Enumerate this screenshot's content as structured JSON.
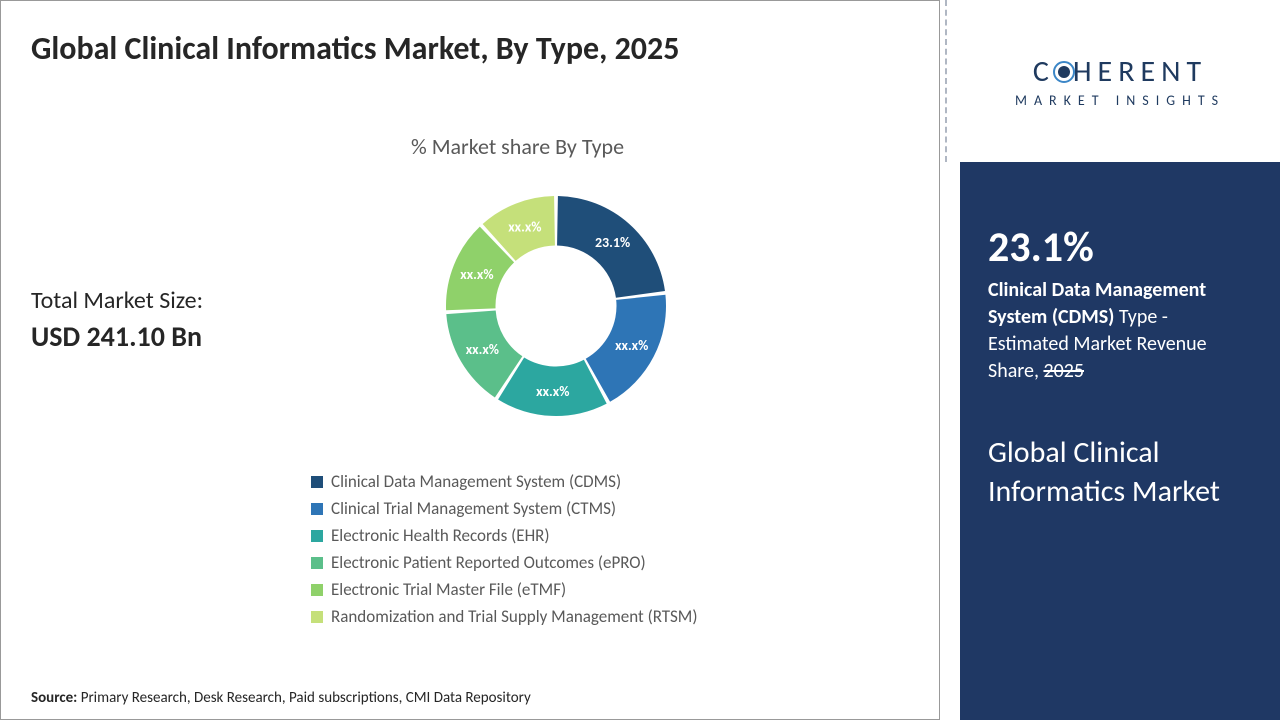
{
  "title": "Global Clinical Informatics Market, By Type, 2025",
  "chart_subtitle": "% Market share By Type",
  "market_size": {
    "label": "Total Market Size:",
    "value": "USD 241.10 Bn"
  },
  "donut": {
    "type": "donut",
    "inner_radius_pct": 55,
    "gap_deg": 2,
    "background_color": "#ffffff",
    "slices": [
      {
        "name": "Clinical Data Management System (CDMS)",
        "value": 23.1,
        "label": "23.1%",
        "color": "#1f4e79"
      },
      {
        "name": "Clinical Trial Management System (CTMS)",
        "value": 19.0,
        "label": "xx.x%",
        "color": "#2e75b6"
      },
      {
        "name": "Electronic Health Records (EHR)",
        "value": 17.0,
        "label": "xx.x%",
        "color": "#2ca7a0"
      },
      {
        "name": "Electronic Patient Reported Outcomes (ePRO)",
        "value": 15.0,
        "label": "xx.x%",
        "color": "#5bbf8a"
      },
      {
        "name": "Electronic Trial Master File (eTMF)",
        "value": 14.0,
        "label": "xx.x%",
        "color": "#8fd16a"
      },
      {
        "name": "Randomization and Trial Supply Management (RTSM)",
        "value": 11.9,
        "label": "xx.x%",
        "color": "#c5e07a"
      }
    ],
    "label_color_first": "#ffffff",
    "label_color_rest": "#ffffff",
    "label_fontweight": "700",
    "label_fontsize": 14
  },
  "legend": [
    "Clinical Data Management System (CDMS)",
    "Clinical Trial Management System (CTMS)",
    "Electronic Health Records (EHR)",
    "Electronic Patient Reported Outcomes (ePRO)",
    "Electronic Trial Master File (eTMF)",
    "Randomization and Trial Supply Management (RTSM)"
  ],
  "source": {
    "label": "Source:",
    "text": "Primary Research, Desk Research, Paid subscriptions, CMI Data Repository"
  },
  "brand": {
    "name_pre": "C",
    "name_post": "HERENT",
    "tagline": "MARKET INSIGHTS"
  },
  "sidebar": {
    "pct": "23.1%",
    "desc_bold": "Clinical Data Management System (CDMS)",
    "desc_rest_1": " Type - Estimated Market Revenue Share, ",
    "desc_year": "2025",
    "market_name": "Global Clinical Informatics Market",
    "bg_color": "#1f3864",
    "text_color": "#ffffff"
  }
}
